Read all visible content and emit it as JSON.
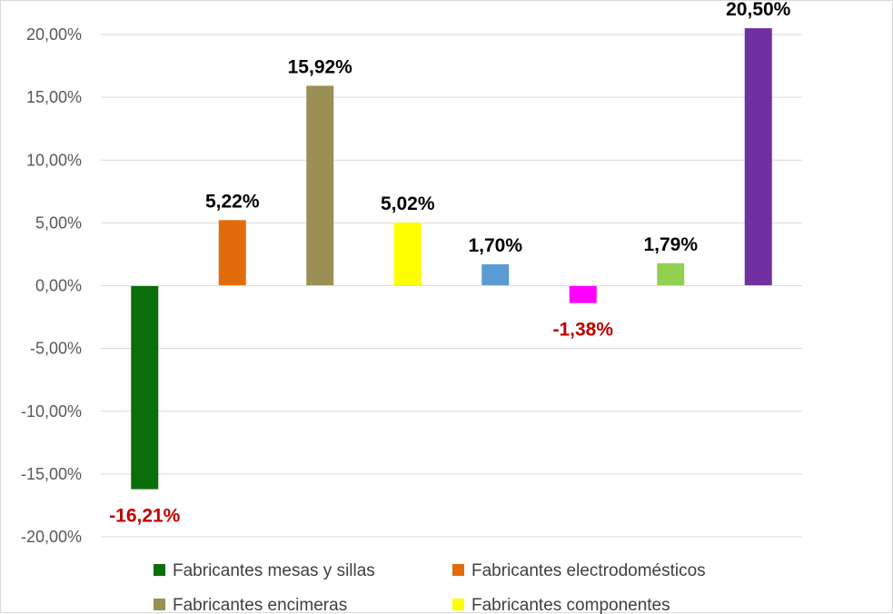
{
  "chart_data": {
    "type": "bar",
    "title": "",
    "xlabel": "",
    "ylabel": "",
    "ylim": [
      -20,
      20
    ],
    "ytick_labels": [
      "20,00%",
      "15,00%",
      "10,00%",
      "5,00%",
      "0,00%",
      "-5,00%",
      "-10,00%",
      "-15,00%",
      "-20,00%"
    ],
    "grid": true,
    "legend_position": "bottom",
    "series": [
      {
        "name": "Fabricantes mesas y sillas",
        "value": -16.21,
        "label": "-16,21%",
        "color": "#0a6e0a",
        "label_color": "#c00000"
      },
      {
        "name": "Fabricantes electrodomésticos",
        "value": 5.22,
        "label": "5,22%",
        "color": "#e36c0a",
        "label_color": "#000000"
      },
      {
        "name": "Fabricantes encimeras",
        "value": 15.92,
        "label": "15,92%",
        "color": "#9a8f55",
        "label_color": "#000000"
      },
      {
        "name": "Fabricantes componentes",
        "value": 5.02,
        "label": "5,02%",
        "color": "#ffff00",
        "label_color": "#000000"
      },
      {
        "name": "",
        "value": 1.7,
        "label": "1,70%",
        "color": "#5b9bd5",
        "label_color": "#000000"
      },
      {
        "name": "",
        "value": -1.38,
        "label": "-1,38%",
        "color": "#ff00ff",
        "label_color": "#c00000"
      },
      {
        "name": "",
        "value": 1.79,
        "label": "1,79%",
        "color": "#92d050",
        "label_color": "#000000"
      },
      {
        "name": "",
        "value": 20.5,
        "label": "20,50%",
        "color": "#7030a0",
        "label_color": "#000000"
      }
    ]
  }
}
